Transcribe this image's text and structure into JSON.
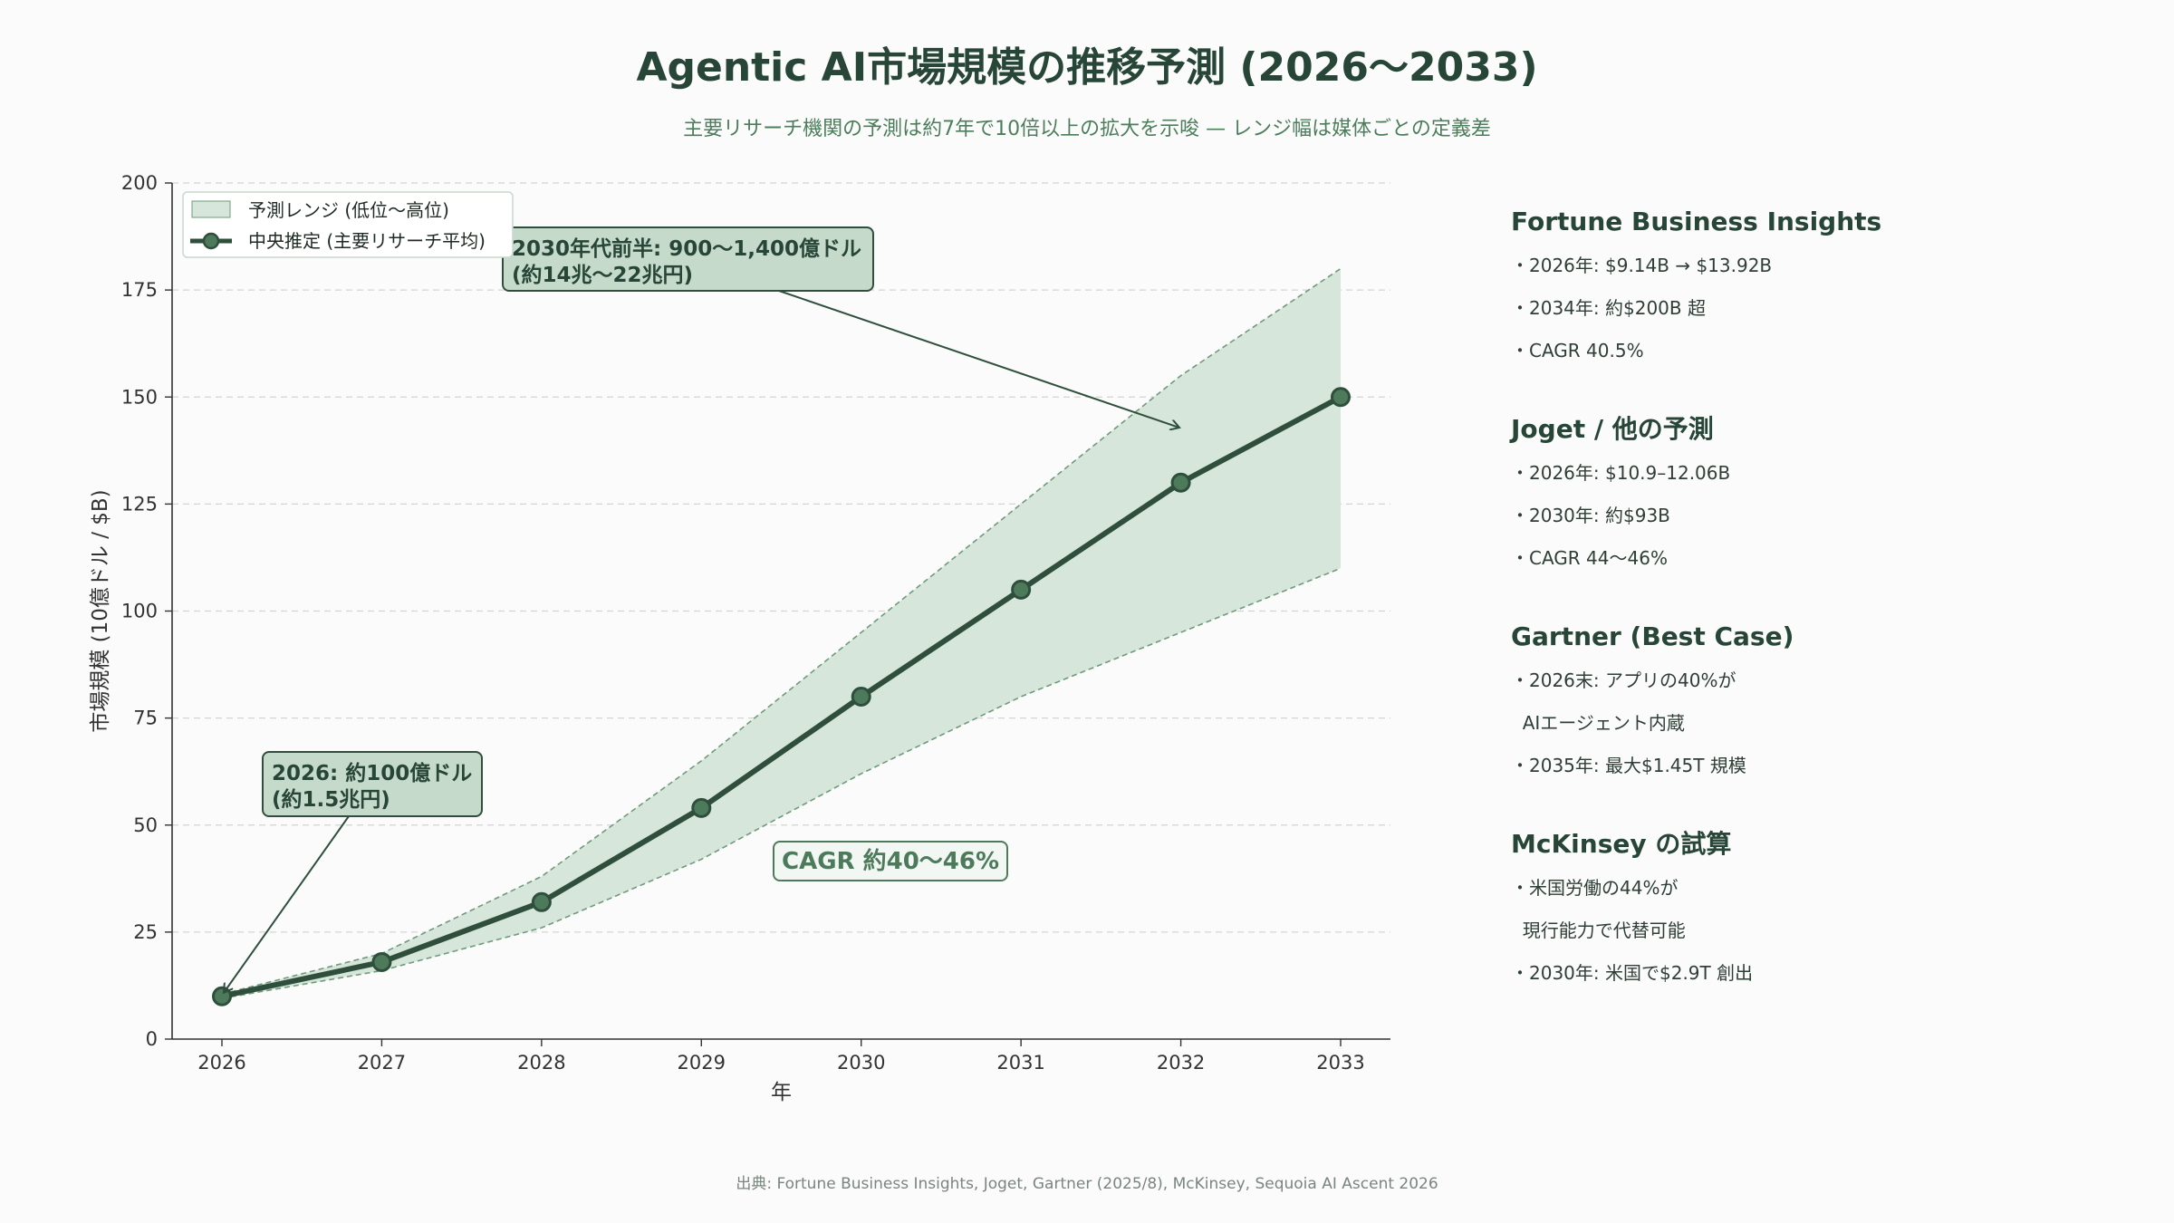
{
  "title": "Agentic AI市場規模の推移予測 (2026〜2033)",
  "subtitle": "主要リサーチ機関の予測は約7年で10倍以上の拡大を示唆 — レンジ幅は媒体ごとの定義差",
  "colors": {
    "line": "#2f4f3c",
    "marker": "#4e7a5c",
    "band_fill": "#d6e6da",
    "band_edge": "#6f9a7b",
    "callout_fill": "#c6dacb",
    "callout_border": "#2f4f3c",
    "cagr_text": "#4e7a5c",
    "grid": "#d4d4d4",
    "axis": "#333333"
  },
  "chart_data": {
    "type": "line",
    "x": [
      2026,
      2027,
      2028,
      2029,
      2030,
      2031,
      2032,
      2033
    ],
    "xlabel": "年",
    "ylabel": "市場規模 (10億ドル / $B)",
    "ylim": [
      0,
      200
    ],
    "yticks": [
      0,
      25,
      50,
      75,
      100,
      125,
      150,
      175,
      200
    ],
    "grid": "horizontal dashed",
    "legend_position": "top-left",
    "series": [
      {
        "name": "中央推定 (主要リサーチ平均)",
        "values": [
          10,
          18,
          32,
          54,
          80,
          105,
          130,
          150
        ]
      }
    ],
    "band": {
      "name": "予測レンジ (低位〜高位)",
      "low": [
        9.5,
        16,
        26,
        42,
        62,
        80,
        95,
        110
      ],
      "high": [
        10.5,
        20,
        38,
        65,
        95,
        125,
        155,
        180
      ]
    },
    "annotations": [
      {
        "line1": "2026: 約100億ドル",
        "line2": "(約1.5兆円)",
        "target": [
          2026,
          10
        ]
      },
      {
        "line1": "2030年代前半: 900〜1,400億ドル",
        "line2": "(約14兆〜22兆円)",
        "target": [
          2031.98,
          142
        ]
      }
    ],
    "cagr_label": "CAGR 約40〜46%"
  },
  "side_panel": [
    {
      "heading": "Fortune Business Insights",
      "lines": [
        "・2026年: $9.14B → $13.92B",
        "・2034年: 約$200B 超",
        "・CAGR 40.5%"
      ]
    },
    {
      "heading": "Joget / 他の予測",
      "lines": [
        "・2026年: $10.9–12.06B",
        "・2030年: 約$93B",
        "・CAGR 44〜46%"
      ]
    },
    {
      "heading": "Gartner (Best Case)",
      "lines": [
        "・2026末: アプリの40%が",
        "  AIエージェント内蔵",
        "・2035年: 最大$1.45T 規模"
      ]
    },
    {
      "heading": "McKinsey の試算",
      "lines": [
        "・米国労働の44%が",
        "  現行能力で代替可能",
        "・2030年: 米国で$2.9T 創出"
      ]
    }
  ],
  "source": "出典: Fortune Business Insights, Joget, Gartner (2025/8), McKinsey, Sequoia AI Ascent 2026"
}
